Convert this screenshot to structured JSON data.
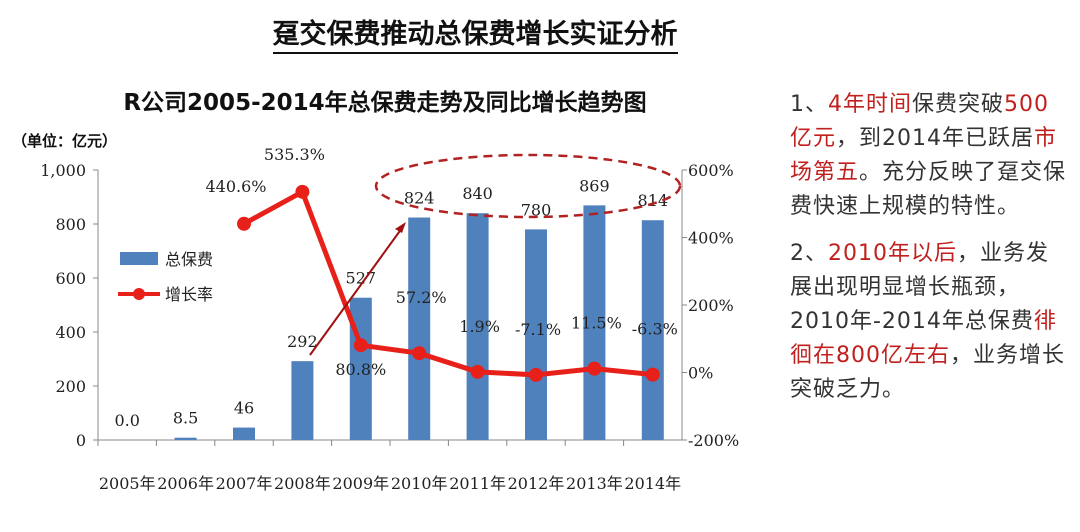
{
  "page_title": "趸交保费推动总保费增长实证分析",
  "notes": {
    "p1": [
      {
        "text": "1、",
        "hl": false
      },
      {
        "text": "4年时间",
        "hl": true
      },
      {
        "text": "保费突破",
        "hl": false
      },
      {
        "text": "500亿元",
        "hl": true
      },
      {
        "text": "，到2014年已跃居",
        "hl": false
      },
      {
        "text": "市场第五",
        "hl": true
      },
      {
        "text": "。充分反映了趸交保费快速上规模的特性。",
        "hl": false
      }
    ],
    "p2": [
      {
        "text": "2、",
        "hl": false
      },
      {
        "text": "2010年以后",
        "hl": true
      },
      {
        "text": "，业务发展出现明显增长瓶颈，2010年-2014年总保费",
        "hl": false
      },
      {
        "text": "徘徊在800亿左右",
        "hl": true
      },
      {
        "text": "，业务增长突破乏力。",
        "hl": false
      }
    ],
    "highlight_color": "#c0201e"
  },
  "chart_data": {
    "type": "bar+line",
    "title": "R公司2005-2014年总保费走势及同比增长趋势图",
    "unit_label": "（单位：亿元）",
    "categories": [
      "2005年",
      "2006年",
      "2007年",
      "2008年",
      "2009年",
      "2010年",
      "2011年",
      "2012年",
      "2013年",
      "2014年"
    ],
    "series": [
      {
        "name": "总保费",
        "type": "bar",
        "axis": "left",
        "color": "#4f81bd",
        "values": [
          0.0,
          8.5,
          46,
          292,
          527,
          824,
          840,
          780,
          869,
          814
        ],
        "labels": [
          "0.0",
          "8.5",
          "46",
          "292",
          "527",
          "824",
          "840",
          "780",
          "869",
          "814"
        ]
      },
      {
        "name": "增长率",
        "type": "line",
        "axis": "right",
        "color": "#e8201a",
        "values": [
          null,
          null,
          440.6,
          535.3,
          80.8,
          57.2,
          1.9,
          -7.1,
          11.5,
          -6.3
        ],
        "labels": [
          null,
          null,
          "440.6%",
          "535.3%",
          "80.8%",
          "57.2%",
          "1.9%",
          "-7.1%",
          "11.5%",
          "-6.3%"
        ]
      }
    ],
    "left_axis": {
      "range": [
        0,
        1000
      ],
      "ticks": [
        "0",
        "200",
        "400",
        "600",
        "800",
        "1,000"
      ]
    },
    "right_axis": {
      "range": [
        -200,
        600
      ],
      "ticks": [
        "-200%",
        "0%",
        "200%",
        "400%",
        "600%"
      ]
    },
    "legend": "left-middle",
    "grid": false
  }
}
